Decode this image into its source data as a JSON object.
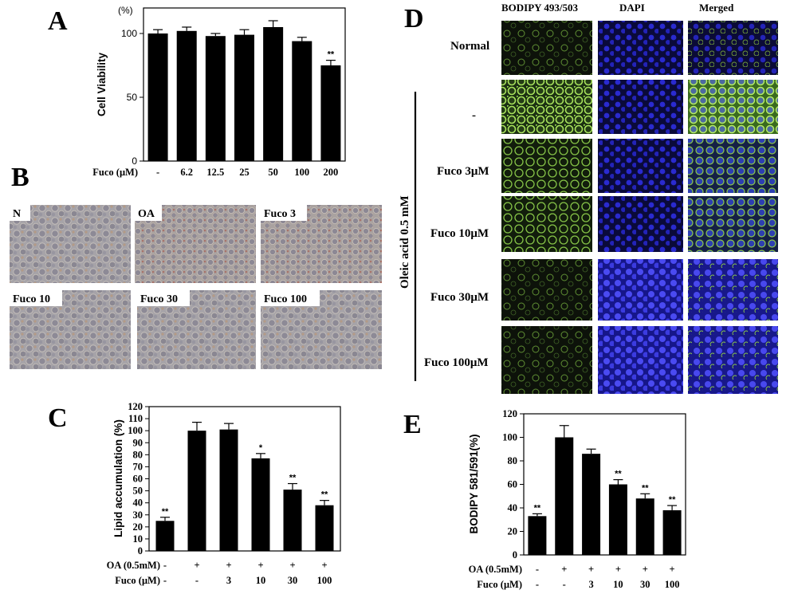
{
  "panels": {
    "A": "A",
    "B": "B",
    "C": "C",
    "D": "D",
    "E": "E"
  },
  "panel_b": {
    "images": [
      "N",
      "OA",
      "Fuco 3",
      "Fuco 10",
      "Fuco 30",
      "Fuco 100"
    ]
  },
  "panel_d": {
    "columns": [
      "BODIPY 493/503",
      "DAPI",
      "Merged"
    ],
    "rows": [
      "Normal",
      "-",
      "Fuco 3μM",
      "Fuco 10μM",
      "Fuco 30μM",
      "Fuco 100μM"
    ],
    "group_label": "Oleic acid 0.5 mM",
    "colors": {
      "bodipy": "#8fd24a",
      "dapi": "#2222c8"
    }
  },
  "chart_data": [
    {
      "id": "A",
      "type": "bar",
      "ylabel": "Cell Viability",
      "yunit": "(%)",
      "ylim": [
        0,
        120
      ],
      "yticks": [
        0,
        50,
        100
      ],
      "xrows": [
        {
          "label": "Fuco (μM)",
          "values": [
            "-",
            "6.2",
            "12.5",
            "25",
            "50",
            "100",
            "200"
          ]
        }
      ],
      "values": [
        100,
        102,
        98,
        99,
        105,
        94,
        75
      ],
      "errors": [
        3,
        3,
        2,
        4,
        5,
        3,
        4
      ],
      "annotations": [
        "",
        "",
        "",
        "",
        "",
        "",
        "**"
      ]
    },
    {
      "id": "C",
      "type": "bar",
      "ylabel": "Lipid accumulation (%)",
      "ylim": [
        0,
        120
      ],
      "yticks": [
        0,
        10,
        20,
        30,
        40,
        50,
        60,
        70,
        80,
        90,
        100,
        110,
        120
      ],
      "xrows": [
        {
          "label": "OA (0.5mM)",
          "values": [
            "-",
            "+",
            "+",
            "+",
            "+",
            "+"
          ]
        },
        {
          "label": "Fuco (μM)",
          "values": [
            "-",
            "-",
            "3",
            "10",
            "30",
            "100"
          ]
        }
      ],
      "values": [
        25,
        100,
        101,
        77,
        51,
        38
      ],
      "errors": [
        3,
        7,
        5,
        4,
        5,
        4
      ],
      "annotations": [
        "**",
        "",
        "",
        "*",
        "**",
        "**"
      ]
    },
    {
      "id": "E",
      "type": "bar",
      "ylabel": "BODIPY 581/591(%)",
      "ylim": [
        0,
        120
      ],
      "yticks": [
        0,
        20,
        40,
        60,
        80,
        100,
        120
      ],
      "xrows": [
        {
          "label": "OA (0.5mM)",
          "values": [
            "-",
            "+",
            "+",
            "+",
            "+",
            "+"
          ]
        },
        {
          "label": "Fuco (μM)",
          "values": [
            "-",
            "-",
            "3",
            "10",
            "30",
            "100"
          ]
        }
      ],
      "values": [
        33,
        100,
        86,
        60,
        48,
        38
      ],
      "errors": [
        2,
        10,
        4,
        4,
        4,
        4
      ],
      "annotations": [
        "**",
        "",
        "",
        "**",
        "**",
        "**"
      ]
    }
  ]
}
